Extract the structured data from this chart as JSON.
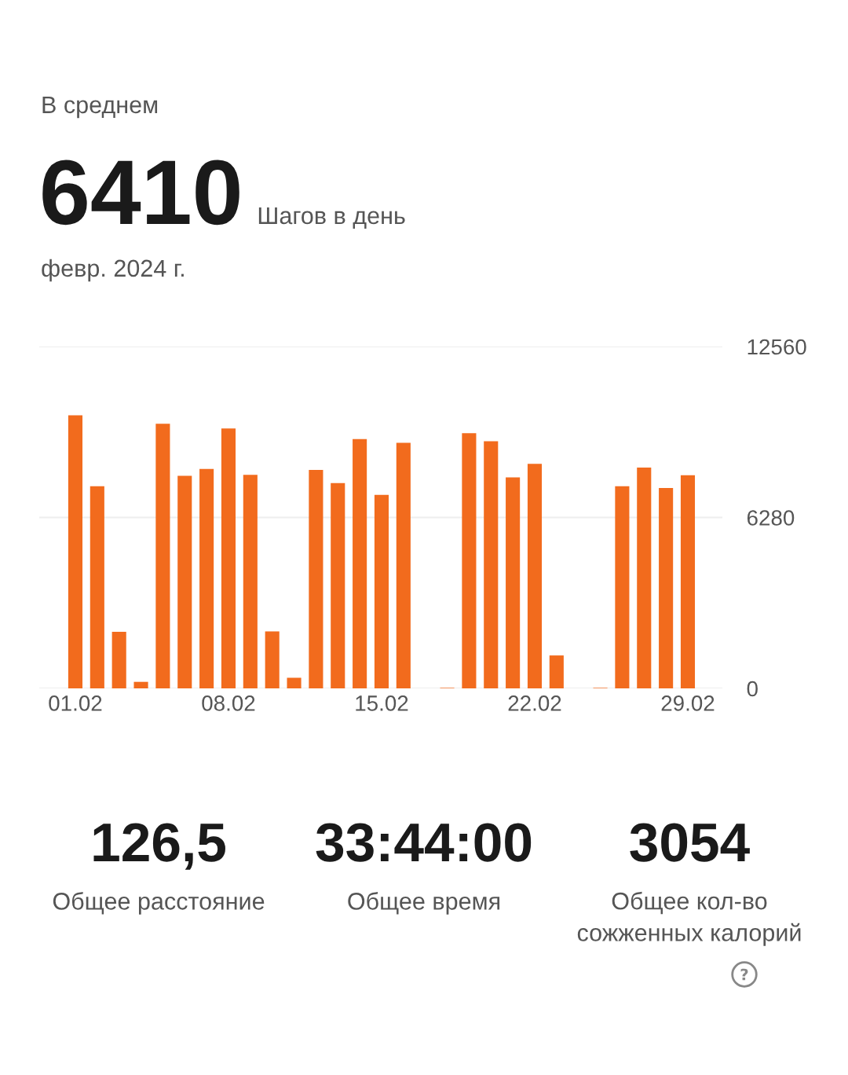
{
  "chart_data": {
    "type": "bar",
    "title": "В среднем",
    "subtitle": "февр. 2024 г.",
    "categories": [
      "01.02",
      null,
      null,
      null,
      null,
      null,
      null,
      "08.02",
      null,
      null,
      null,
      null,
      null,
      null,
      "15.02",
      null,
      null,
      null,
      null,
      null,
      null,
      "22.02",
      null,
      null,
      null,
      null,
      null,
      null,
      "29.02"
    ],
    "values": [
      10030,
      7430,
      2080,
      240,
      9720,
      7810,
      8060,
      9550,
      7850,
      2090,
      390,
      8030,
      7540,
      9160,
      7110,
      9020,
      0,
      20,
      9380,
      9080,
      7750,
      8250,
      1210,
      0,
      20,
      7430,
      8110,
      7360,
      7830
    ],
    "color": "#f26b1d",
    "ylim": [
      0,
      12560
    ],
    "yticks": [
      0,
      6280,
      12560
    ],
    "grid": "y",
    "annotations": [
      "6410",
      "Шагов в день",
      "126,5",
      "Общее расстояние",
      "33:44:00",
      "Общее время",
      "3054",
      "Общее кол-во сожженных калорий"
    ]
  }
}
